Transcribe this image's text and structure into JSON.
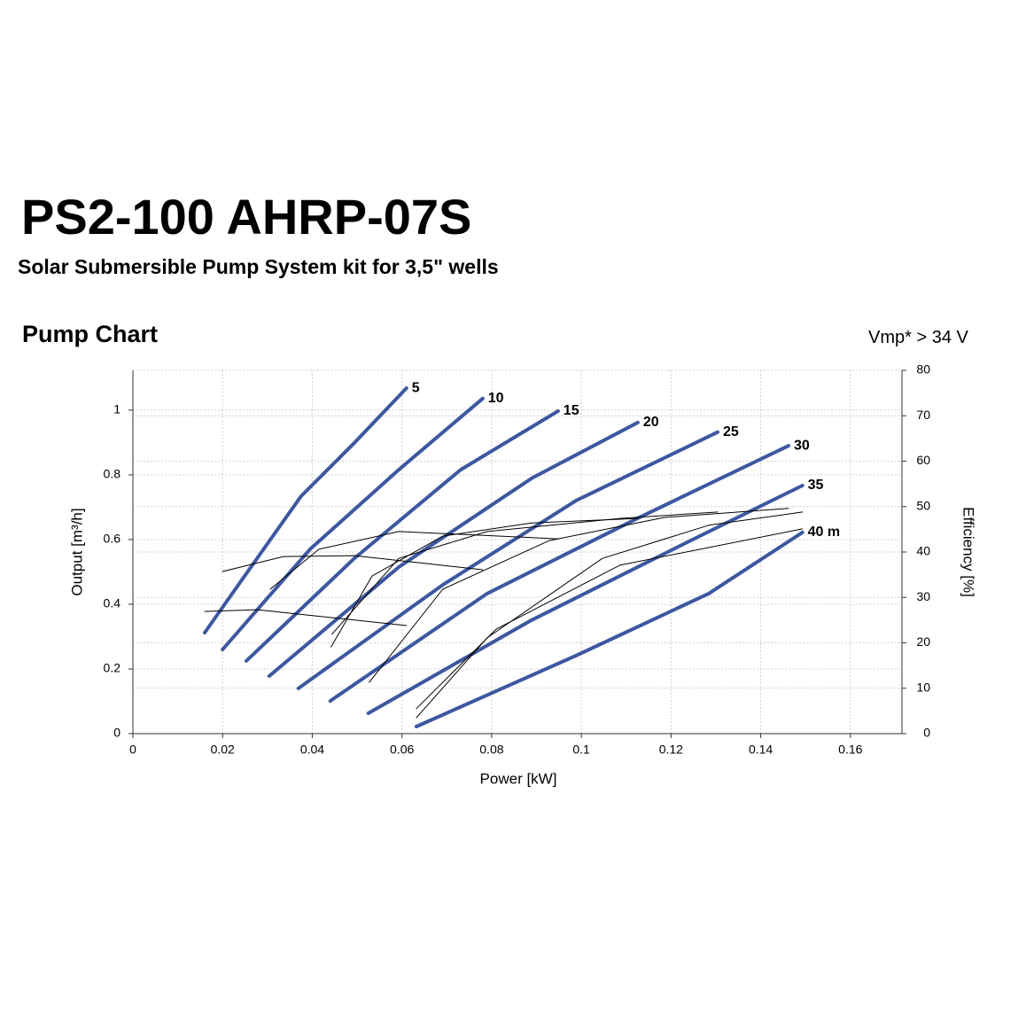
{
  "header": {
    "title": "PS2-100 AHRP-07S",
    "subtitle": "Solar Submersible Pump System kit for 3,5\" wells",
    "section": "Pump Chart",
    "note": "Vmp* > 34 V"
  },
  "chart_data": {
    "type": "line",
    "x_label": "Power [kW]",
    "y_label": "Output [m³/h]",
    "y2_label": "Efficiency [%]",
    "grid": true,
    "xlim": [
      0,
      0.1715
    ],
    "xticks": [
      0,
      0.02,
      0.04,
      0.06,
      0.08,
      0.1,
      0.12,
      0.14,
      0.16
    ],
    "ylim": [
      0,
      1.123
    ],
    "yticks": [
      0,
      0.2,
      0.4,
      0.6,
      0.8,
      1
    ],
    "y2lim": [
      0,
      80
    ],
    "y2ticks": [
      0,
      10,
      20,
      30,
      40,
      50,
      60,
      70,
      80
    ],
    "series": [
      {
        "name": "5",
        "color": "#3d57a0",
        "x": [
          0.016,
          0.0277,
          0.0375,
          0.0494,
          0.061
        ],
        "values": [
          0.312,
          0.542,
          0.734,
          0.899,
          1.068
        ]
      },
      {
        "name": "10",
        "color": "#3d57a0",
        "x": [
          0.02,
          0.0395,
          0.0593,
          0.078
        ],
        "values": [
          0.26,
          0.57,
          0.816,
          1.036
        ]
      },
      {
        "name": "15",
        "color": "#3d57a0",
        "x": [
          0.0253,
          0.0494,
          0.0731,
          0.0948
        ],
        "values": [
          0.225,
          0.542,
          0.816,
          0.997
        ]
      },
      {
        "name": "20",
        "color": "#3d57a0",
        "x": [
          0.0304,
          0.0593,
          0.0889,
          0.1126
        ],
        "values": [
          0.178,
          0.515,
          0.789,
          0.962
        ]
      },
      {
        "name": "25",
        "color": "#3d57a0",
        "x": [
          0.0369,
          0.0691,
          0.0988,
          0.1304
        ],
        "values": [
          0.14,
          0.46,
          0.72,
          0.932
        ]
      },
      {
        "name": "30",
        "color": "#3d57a0",
        "x": [
          0.044,
          0.079,
          0.1126,
          0.1462
        ],
        "values": [
          0.101,
          0.433,
          0.666,
          0.89
        ]
      },
      {
        "name": "35",
        "color": "#3d57a0",
        "x": [
          0.0525,
          0.0889,
          0.1244,
          0.1493
        ],
        "values": [
          0.063,
          0.351,
          0.597,
          0.767
        ]
      },
      {
        "name": "40 m",
        "color": "#3d57a0",
        "x": [
          0.0632,
          0.0988,
          0.1284,
          0.1493
        ],
        "values": [
          0.022,
          0.241,
          0.433,
          0.622
        ]
      },
      {
        "axis": "y2",
        "color": "#000000",
        "x": [
          0.016,
          0.0277,
          0.061
        ],
        "values": [
          26.9,
          27.3,
          23.8
        ]
      },
      {
        "axis": "y2",
        "color": "#000000",
        "x": [
          0.02,
          0.0336,
          0.0494,
          0.078
        ],
        "values": [
          35.7,
          39,
          39.2,
          36.1
        ]
      },
      {
        "axis": "y2",
        "color": "#000000",
        "x": [
          0.0306,
          0.0415,
          0.0593,
          0.0948
        ],
        "values": [
          31.8,
          40.6,
          44.5,
          42.9
        ]
      },
      {
        "axis": "y2",
        "color": "#000000",
        "x": [
          0.0442,
          0.0533,
          0.0691,
          0.0889,
          0.1126
        ],
        "values": [
          19.1,
          34.7,
          43.5,
          46.4,
          47.4
        ]
      },
      {
        "axis": "y2",
        "color": "#000000",
        "x": [
          0.0444,
          0.0593,
          0.079,
          0.1086,
          0.1304
        ],
        "values": [
          21.9,
          38.6,
          44.5,
          47.4,
          48.8
        ]
      },
      {
        "axis": "y2",
        "color": "#000000",
        "x": [
          0.0527,
          0.0691,
          0.0928,
          0.1185,
          0.1462
        ],
        "values": [
          11.3,
          31.8,
          42.5,
          47.6,
          49.6
        ]
      },
      {
        "axis": "y2",
        "color": "#000000",
        "x": [
          0.0632,
          0.079,
          0.1047,
          0.1284,
          0.1493
        ],
        "values": [
          3.5,
          21.1,
          38.6,
          45.9,
          48.8
        ]
      },
      {
        "axis": "y2",
        "color": "#000000",
        "x": [
          0.0632,
          0.081,
          0.1086,
          0.1493
        ],
        "values": [
          5.5,
          23,
          37.1,
          45.1
        ]
      }
    ]
  }
}
